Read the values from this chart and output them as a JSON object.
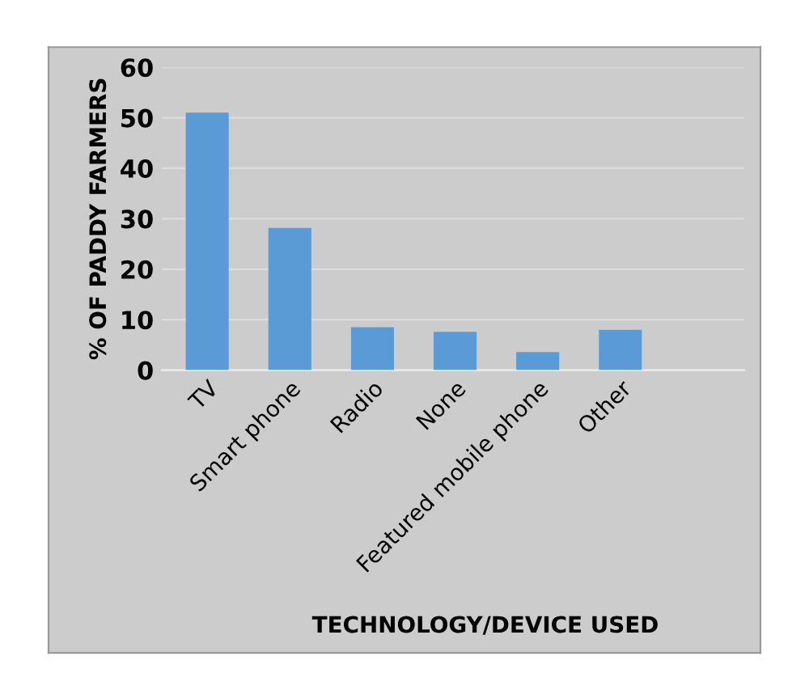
{
  "chart_data": {
    "type": "bar",
    "categories": [
      "TV",
      "Smart phone",
      "Radio",
      "None",
      "Featured mobile phone",
      "Other"
    ],
    "values": [
      51,
      28.2,
      8.5,
      7.6,
      3.6,
      8.0
    ],
    "color": "#5b9bd5",
    "xlabel": "TECHNOLOGY/DEVICE USED",
    "ylabel": "% OF PADDY FARMERS",
    "ylim": [
      0,
      60
    ],
    "yticks": [
      0,
      10,
      20,
      30,
      40,
      50,
      60
    ],
    "grid": "y"
  }
}
